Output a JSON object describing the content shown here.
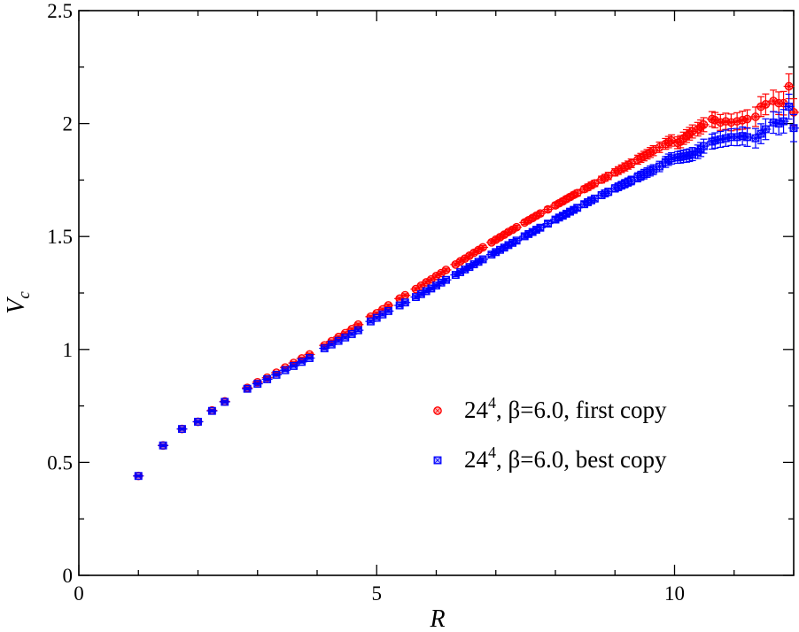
{
  "chart_data": {
    "type": "scatter",
    "xlabel": "R",
    "ylabel_main": "V",
    "ylabel_sub": "c",
    "xlim": [
      0,
      12
    ],
    "ylim": [
      0,
      2.5
    ],
    "x_ticks": [
      {
        "value": 0,
        "label": "0"
      },
      {
        "value": 5,
        "label": "5"
      },
      {
        "value": 10,
        "label": "10"
      }
    ],
    "y_ticks": [
      {
        "value": 0,
        "label": "0"
      },
      {
        "value": 0.5,
        "label": "0.5"
      },
      {
        "value": 1,
        "label": "1"
      },
      {
        "value": 1.5,
        "label": "1.5"
      },
      {
        "value": 2,
        "label": "2"
      },
      {
        "value": 2.5,
        "label": "2.5"
      }
    ],
    "grid": false,
    "legend_position": "lower-right",
    "series": [
      {
        "legend": {
          "base": "24",
          "sup": "4",
          "rest": ", β=6.0, first copy"
        },
        "color": "#ff0000",
        "marker": "circle",
        "points": [
          [
            1.0,
            0.44,
            0.004
          ],
          [
            1.414,
            0.575,
            0.005
          ],
          [
            1.732,
            0.648,
            0.005
          ],
          [
            2.0,
            0.68,
            0.005
          ],
          [
            2.236,
            0.73,
            0.005
          ],
          [
            2.449,
            0.77,
            0.005
          ],
          [
            2.828,
            0.83,
            0.005
          ],
          [
            3.0,
            0.855,
            0.005
          ],
          [
            3.162,
            0.875,
            0.005
          ],
          [
            3.317,
            0.897,
            0.005
          ],
          [
            3.464,
            0.92,
            0.005
          ],
          [
            3.606,
            0.94,
            0.005
          ],
          [
            3.742,
            0.96,
            0.005
          ],
          [
            3.873,
            0.978,
            0.005
          ],
          [
            4.123,
            1.018,
            0.006
          ],
          [
            4.243,
            1.036,
            0.006
          ],
          [
            4.359,
            1.055,
            0.006
          ],
          [
            4.472,
            1.072,
            0.006
          ],
          [
            4.583,
            1.09,
            0.006
          ],
          [
            4.69,
            1.11,
            0.006
          ],
          [
            4.899,
            1.145,
            0.006
          ],
          [
            5.0,
            1.16,
            0.006
          ],
          [
            5.099,
            1.177,
            0.006
          ],
          [
            5.196,
            1.195,
            0.006
          ],
          [
            5.385,
            1.225,
            0.006
          ],
          [
            5.477,
            1.24,
            0.006
          ],
          [
            5.657,
            1.267,
            0.007
          ],
          [
            5.745,
            1.282,
            0.007
          ],
          [
            5.831,
            1.297,
            0.007
          ],
          [
            5.916,
            1.31,
            0.007
          ],
          [
            6.0,
            1.325,
            0.007
          ],
          [
            6.083,
            1.338,
            0.007
          ],
          [
            6.164,
            1.352,
            0.007
          ],
          [
            6.325,
            1.376,
            0.007
          ],
          [
            6.403,
            1.39,
            0.007
          ],
          [
            6.481,
            1.402,
            0.007
          ],
          [
            6.557,
            1.415,
            0.008
          ],
          [
            6.633,
            1.428,
            0.008
          ],
          [
            6.708,
            1.44,
            0.008
          ],
          [
            6.782,
            1.452,
            0.008
          ],
          [
            6.928,
            1.474,
            0.008
          ],
          [
            7.0,
            1.486,
            0.008
          ],
          [
            7.071,
            1.497,
            0.008
          ],
          [
            7.141,
            1.508,
            0.009
          ],
          [
            7.211,
            1.52,
            0.009
          ],
          [
            7.28,
            1.53,
            0.009
          ],
          [
            7.348,
            1.541,
            0.009
          ],
          [
            7.483,
            1.562,
            0.009
          ],
          [
            7.55,
            1.572,
            0.01
          ],
          [
            7.616,
            1.582,
            0.01
          ],
          [
            7.681,
            1.592,
            0.01
          ],
          [
            7.746,
            1.602,
            0.01
          ],
          [
            7.874,
            1.62,
            0.011
          ],
          [
            8.0,
            1.638,
            0.011
          ],
          [
            8.062,
            1.647,
            0.011
          ],
          [
            8.124,
            1.656,
            0.012
          ],
          [
            8.185,
            1.666,
            0.012
          ],
          [
            8.246,
            1.675,
            0.012
          ],
          [
            8.307,
            1.684,
            0.012
          ],
          [
            8.367,
            1.692,
            0.013
          ],
          [
            8.485,
            1.71,
            0.013
          ],
          [
            8.544,
            1.718,
            0.014
          ],
          [
            8.602,
            1.727,
            0.014
          ],
          [
            8.66,
            1.735,
            0.014
          ],
          [
            8.775,
            1.752,
            0.015
          ],
          [
            8.832,
            1.76,
            0.015
          ],
          [
            8.888,
            1.768,
            0.016
          ],
          [
            9.0,
            1.784,
            0.016
          ],
          [
            9.055,
            1.792,
            0.017
          ],
          [
            9.11,
            1.8,
            0.017
          ],
          [
            9.165,
            1.808,
            0.018
          ],
          [
            9.22,
            1.816,
            0.018
          ],
          [
            9.274,
            1.824,
            0.019
          ],
          [
            9.381,
            1.84,
            0.02
          ],
          [
            9.434,
            1.848,
            0.02
          ],
          [
            9.487,
            1.856,
            0.021
          ],
          [
            9.539,
            1.864,
            0.021
          ],
          [
            9.592,
            1.872,
            0.022
          ],
          [
            9.644,
            1.88,
            0.022
          ],
          [
            9.747,
            1.895,
            0.023
          ],
          [
            9.849,
            1.91,
            0.024
          ],
          [
            9.899,
            1.918,
            0.025
          ],
          [
            9.95,
            1.925,
            0.025
          ],
          [
            10.05,
            1.915,
            0.026
          ],
          [
            10.1,
            1.92,
            0.027
          ],
          [
            10.15,
            1.935,
            0.027
          ],
          [
            10.2,
            1.945,
            0.028
          ],
          [
            10.25,
            1.955,
            0.028
          ],
          [
            10.3,
            1.965,
            0.029
          ],
          [
            10.39,
            1.975,
            0.03
          ],
          [
            10.44,
            1.985,
            0.031
          ],
          [
            10.49,
            1.995,
            0.031
          ],
          [
            10.63,
            2.02,
            0.033
          ],
          [
            10.68,
            2.015,
            0.034
          ],
          [
            10.77,
            2.005,
            0.035
          ],
          [
            10.86,
            2.01,
            0.036
          ],
          [
            10.95,
            2.005,
            0.037
          ],
          [
            11.05,
            2.01,
            0.038
          ],
          [
            11.14,
            2.015,
            0.04
          ],
          [
            11.22,
            2.02,
            0.041
          ],
          [
            11.36,
            2.03,
            0.043
          ],
          [
            11.45,
            2.075,
            0.044
          ],
          [
            11.53,
            2.085,
            0.046
          ],
          [
            11.66,
            2.1,
            0.048
          ],
          [
            11.75,
            2.09,
            0.05
          ],
          [
            11.83,
            2.09,
            0.052
          ],
          [
            11.92,
            2.165,
            0.055
          ],
          [
            12.0,
            2.05,
            0.06
          ]
        ]
      },
      {
        "legend": {
          "base": "24",
          "sup": "4",
          "rest": ", β=6.0, best copy"
        },
        "color": "#0000ff",
        "marker": "square",
        "points": [
          [
            1.0,
            0.44,
            0.004
          ],
          [
            1.414,
            0.575,
            0.005
          ],
          [
            1.732,
            0.648,
            0.005
          ],
          [
            2.0,
            0.68,
            0.005
          ],
          [
            2.236,
            0.728,
            0.005
          ],
          [
            2.449,
            0.768,
            0.005
          ],
          [
            2.828,
            0.826,
            0.005
          ],
          [
            3.0,
            0.848,
            0.005
          ],
          [
            3.162,
            0.868,
            0.005
          ],
          [
            3.317,
            0.888,
            0.005
          ],
          [
            3.464,
            0.908,
            0.005
          ],
          [
            3.606,
            0.927,
            0.005
          ],
          [
            3.742,
            0.945,
            0.005
          ],
          [
            3.873,
            0.962,
            0.005
          ],
          [
            4.123,
            1.005,
            0.006
          ],
          [
            4.243,
            1.022,
            0.006
          ],
          [
            4.359,
            1.038,
            0.006
          ],
          [
            4.472,
            1.053,
            0.006
          ],
          [
            4.583,
            1.068,
            0.006
          ],
          [
            4.69,
            1.085,
            0.006
          ],
          [
            4.899,
            1.124,
            0.006
          ],
          [
            5.0,
            1.14,
            0.006
          ],
          [
            5.099,
            1.155,
            0.006
          ],
          [
            5.196,
            1.17,
            0.006
          ],
          [
            5.385,
            1.195,
            0.006
          ],
          [
            5.477,
            1.208,
            0.006
          ],
          [
            5.657,
            1.232,
            0.007
          ],
          [
            5.745,
            1.245,
            0.007
          ],
          [
            5.831,
            1.258,
            0.007
          ],
          [
            5.916,
            1.27,
            0.007
          ],
          [
            6.0,
            1.283,
            0.007
          ],
          [
            6.083,
            1.296,
            0.007
          ],
          [
            6.164,
            1.308,
            0.007
          ],
          [
            6.325,
            1.33,
            0.007
          ],
          [
            6.403,
            1.342,
            0.007
          ],
          [
            6.481,
            1.354,
            0.007
          ],
          [
            6.557,
            1.365,
            0.008
          ],
          [
            6.633,
            1.377,
            0.008
          ],
          [
            6.708,
            1.388,
            0.008
          ],
          [
            6.782,
            1.399,
            0.008
          ],
          [
            6.928,
            1.42,
            0.008
          ],
          [
            7.0,
            1.431,
            0.008
          ],
          [
            7.071,
            1.441,
            0.008
          ],
          [
            7.141,
            1.451,
            0.009
          ],
          [
            7.211,
            1.462,
            0.009
          ],
          [
            7.28,
            1.472,
            0.009
          ],
          [
            7.348,
            1.482,
            0.009
          ],
          [
            7.483,
            1.501,
            0.009
          ],
          [
            7.55,
            1.511,
            0.01
          ],
          [
            7.616,
            1.52,
            0.01
          ],
          [
            7.681,
            1.53,
            0.01
          ],
          [
            7.746,
            1.539,
            0.01
          ],
          [
            7.874,
            1.557,
            0.011
          ],
          [
            8.0,
            1.575,
            0.011
          ],
          [
            8.062,
            1.584,
            0.011
          ],
          [
            8.124,
            1.592,
            0.012
          ],
          [
            8.185,
            1.601,
            0.012
          ],
          [
            8.246,
            1.61,
            0.012
          ],
          [
            8.307,
            1.618,
            0.012
          ],
          [
            8.367,
            1.627,
            0.013
          ],
          [
            8.485,
            1.643,
            0.013
          ],
          [
            8.544,
            1.652,
            0.014
          ],
          [
            8.602,
            1.66,
            0.014
          ],
          [
            8.66,
            1.668,
            0.014
          ],
          [
            8.775,
            1.683,
            0.015
          ],
          [
            8.832,
            1.691,
            0.015
          ],
          [
            8.888,
            1.698,
            0.016
          ],
          [
            9.0,
            1.713,
            0.016
          ],
          [
            9.055,
            1.72,
            0.017
          ],
          [
            9.11,
            1.727,
            0.017
          ],
          [
            9.165,
            1.734,
            0.018
          ],
          [
            9.22,
            1.741,
            0.018
          ],
          [
            9.274,
            1.748,
            0.019
          ],
          [
            9.381,
            1.762,
            0.02
          ],
          [
            9.434,
            1.769,
            0.02
          ],
          [
            9.487,
            1.776,
            0.021
          ],
          [
            9.539,
            1.783,
            0.021
          ],
          [
            9.592,
            1.79,
            0.022
          ],
          [
            9.644,
            1.796,
            0.022
          ],
          [
            9.747,
            1.81,
            0.023
          ],
          [
            9.849,
            1.83,
            0.024
          ],
          [
            9.899,
            1.84,
            0.025
          ],
          [
            9.95,
            1.846,
            0.025
          ],
          [
            10.05,
            1.85,
            0.026
          ],
          [
            10.1,
            1.852,
            0.027
          ],
          [
            10.15,
            1.855,
            0.027
          ],
          [
            10.2,
            1.857,
            0.028
          ],
          [
            10.25,
            1.86,
            0.028
          ],
          [
            10.3,
            1.865,
            0.029
          ],
          [
            10.39,
            1.875,
            0.03
          ],
          [
            10.44,
            1.885,
            0.031
          ],
          [
            10.49,
            1.9,
            0.031
          ],
          [
            10.63,
            1.92,
            0.033
          ],
          [
            10.68,
            1.925,
            0.034
          ],
          [
            10.77,
            1.93,
            0.035
          ],
          [
            10.86,
            1.935,
            0.036
          ],
          [
            10.95,
            1.94,
            0.037
          ],
          [
            11.05,
            1.94,
            0.038
          ],
          [
            11.14,
            1.945,
            0.04
          ],
          [
            11.22,
            1.94,
            0.041
          ],
          [
            11.36,
            1.935,
            0.043
          ],
          [
            11.45,
            1.955,
            0.044
          ],
          [
            11.53,
            1.975,
            0.046
          ],
          [
            11.66,
            2.005,
            0.048
          ],
          [
            11.75,
            2.0,
            0.05
          ],
          [
            11.83,
            2.01,
            0.052
          ],
          [
            11.92,
            2.075,
            0.055
          ],
          [
            12.0,
            1.98,
            0.06
          ]
        ]
      }
    ]
  }
}
